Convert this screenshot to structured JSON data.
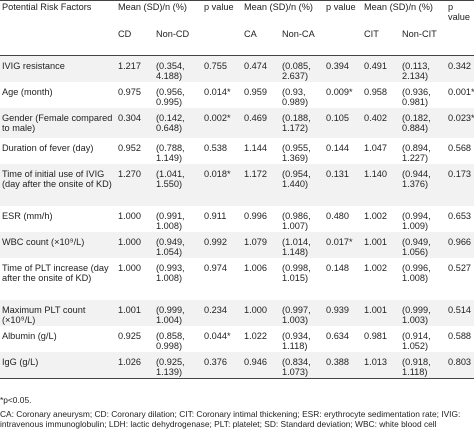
{
  "table": {
    "header": {
      "factor_label": "Potential Risk Factors",
      "groups": [
        {
          "mean_label": "Mean (SD)/n (%)",
          "p_label": "p value",
          "sub": [
            "CD",
            "Non-CD"
          ]
        },
        {
          "mean_label": "Mean (SD)/n (%)",
          "p_label": "p value",
          "sub": [
            "CA",
            "Non-CA"
          ]
        },
        {
          "mean_label": "Mean (SD)/n (%)",
          "p_label": "p value",
          "sub": [
            "CIT",
            "Non-CIT"
          ]
        }
      ]
    },
    "rows": [
      {
        "factor": "IVIG resistance",
        "cd": "1.217",
        "noncd": "(0.354, 4.188)",
        "p1": "0.755",
        "ca": "0.474",
        "nonca": "(0.085, 2.637)",
        "p2": "0.394",
        "cit": "0.491",
        "noncit": "(0.113, 2.134)",
        "p3": "0.342"
      },
      {
        "factor": "Age (month)",
        "cd": "0.975",
        "noncd": "(0.956, 0.995)",
        "p1": "0.014*",
        "ca": "0.959",
        "nonca": "(0.93, 0.989)",
        "p2": "0.009*",
        "cit": "0.958",
        "noncit": "(0.936, 0.981)",
        "p3": "0.001*"
      },
      {
        "factor": "Gender (Female compared to male)",
        "cd": "0.304",
        "noncd": "(0.142, 0.648)",
        "p1": "0.002*",
        "ca": "0.469",
        "nonca": "(0.188, 1.172)",
        "p2": "0.105",
        "cit": "0.402",
        "noncit": "(0.182, 0.884)",
        "p3": "0.023*"
      },
      {
        "factor": "Duration of fever (day)",
        "cd": "0.952",
        "noncd": "(0.788, 1.149)",
        "p1": "0.538",
        "ca": "1.144",
        "nonca": "(0.955, 1.369)",
        "p2": "0.144",
        "cit": "1.047",
        "noncit": "(0.894, 1.227)",
        "p3": "0.568"
      },
      {
        "factor": "Time of initial use of IVIG (day after the onsite of KD)",
        "cd": "1.270",
        "noncd": "(1.041, 1.550)",
        "p1": "0.018*",
        "ca": "1.172",
        "nonca": "(0.954, 1.440)",
        "p2": "0.131",
        "cit": "1.140",
        "noncit": "(0.944, 1.376)",
        "p3": "0.173"
      },
      {
        "factor": "ESR (mm/h)",
        "cd": "1.000",
        "noncd": "(0.991, 1.008)",
        "p1": "0.911",
        "ca": "0.996",
        "nonca": "(0.986, 1.007)",
        "p2": "0.480",
        "cit": "1.002",
        "noncit": "(0.994, 1.009)",
        "p3": "0.653"
      },
      {
        "factor": "WBC count (×10⁹/L)",
        "cd": "1.000",
        "noncd": "(0.949, 1.054)",
        "p1": "0.992",
        "ca": "1.079",
        "nonca": "(1.014, 1.148)",
        "p2": "0.017*",
        "cit": "1.001",
        "noncit": "(0.949, 1.056)",
        "p3": "0.966"
      },
      {
        "factor": "Time of PLT increase (day after the onsite of KD)",
        "cd": "1.000",
        "noncd": "(0.993, 1.008)",
        "p1": "0.974",
        "ca": "1.006",
        "nonca": "(0.998, 1.015)",
        "p2": "0.148",
        "cit": "1.002",
        "noncit": "(0.996, 1.008)",
        "p3": "0.527"
      },
      {
        "factor": "Maximum PLT count (×10⁹/L)",
        "cd": "1.001",
        "noncd": "(0.999, 1.004)",
        "p1": "0.234",
        "ca": "1.000",
        "nonca": "(0.997, 1.003)",
        "p2": "0.939",
        "cit": "1.001",
        "noncit": "(0.999, 1.003)",
        "p3": "0.514"
      },
      {
        "factor": "Albumin (g/L)",
        "cd": "0.925",
        "noncd": "(0.858, 0.998)",
        "p1": "0.044*",
        "ca": "1.022",
        "nonca": "(0.934, 1.118)",
        "p2": "0.634",
        "cit": "0.981",
        "noncit": "(0.914, 1.052)",
        "p3": "0.588"
      },
      {
        "factor": "IgG (g/L)",
        "cd": "1.026",
        "noncd": "(0.925, 1.139)",
        "p1": "0.376",
        "ca": "0.946",
        "nonca": "(0.834, 1.073)",
        "p2": "0.388",
        "cit": "1.013",
        "noncit": "(0.918, 1.118)",
        "p3": "0.803"
      }
    ]
  },
  "notes": {
    "significance": "*p<0.05.",
    "abbreviations": "CA: Coronary aneurysm; CD: Coronary dilation; CIT: Coronary intimal thickening; ESR: erythrocyte sedimentation rate; IVIG: intravenous immunoglobulin; LDH: lactic dehydrogenase; PLT: platelet; SD: Standard deviation; WBC: white blood cell"
  }
}
